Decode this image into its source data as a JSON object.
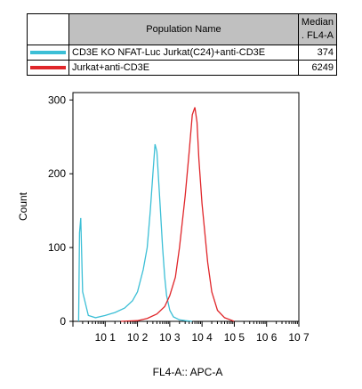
{
  "legend": {
    "header_name": "Population Name",
    "header_median": "Median\n. FL4-A",
    "rows": [
      {
        "name": "CD3E KO NFAT-Luc Jurkat(C24)+anti-CD3E",
        "median": "374",
        "color": "#3cbfd6"
      },
      {
        "name": "Jurkat+anti-CD3E",
        "median": "6249",
        "color": "#e0262a"
      }
    ]
  },
  "chart_data": {
    "type": "line",
    "xlabel": "FL4-A:: APC-A",
    "ylabel": "Count",
    "x_scale": "log",
    "xlim": [
      1,
      10000000
    ],
    "ylim": [
      0,
      310
    ],
    "y_ticks": [
      0,
      100,
      200,
      300
    ],
    "x_ticks": [
      "10 1",
      "10 2",
      "10 3",
      "10 4",
      "10 5",
      "10 6",
      "10 7"
    ],
    "series": [
      {
        "name": "CD3E KO NFAT-Luc Jurkat(C24)+anti-CD3E",
        "color": "#3cbfd6",
        "x": [
          1.5,
          1.6,
          1.75,
          2,
          3,
          5,
          10,
          20,
          40,
          70,
          100,
          150,
          200,
          250,
          300,
          350,
          400,
          500,
          600,
          700,
          800,
          1000,
          1300,
          2000,
          3000,
          5000
        ],
        "y": [
          0,
          120,
          140,
          40,
          8,
          5,
          8,
          12,
          18,
          28,
          40,
          70,
          100,
          150,
          200,
          240,
          230,
          160,
          100,
          60,
          35,
          15,
          6,
          2,
          1,
          0
        ]
      },
      {
        "name": "Jurkat+anti-CD3E",
        "color": "#e0262a",
        "x": [
          30,
          100,
          200,
          400,
          700,
          1000,
          1500,
          2000,
          3000,
          4000,
          5000,
          6000,
          7000,
          8000,
          10000,
          15000,
          20000,
          30000,
          50000,
          100000
        ],
        "y": [
          0,
          1,
          4,
          10,
          20,
          35,
          60,
          100,
          170,
          230,
          280,
          290,
          270,
          220,
          160,
          80,
          40,
          15,
          5,
          0
        ]
      }
    ]
  }
}
